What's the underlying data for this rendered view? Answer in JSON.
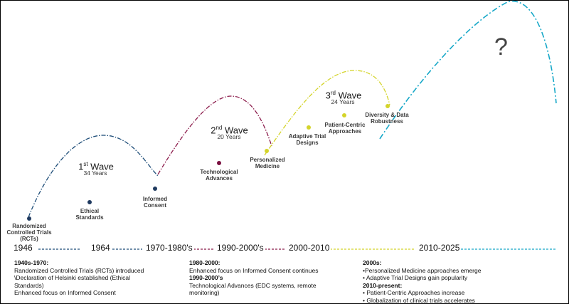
{
  "waves": [
    {
      "name_main": "1",
      "name_sup": "st",
      "name_rest": " Wave",
      "years": "34 Years",
      "color": "#1f4e79"
    },
    {
      "name_main": "2",
      "name_sup": "nd",
      "name_rest": " Wave",
      "years": "20 Years",
      "color": "#8b1a4a"
    },
    {
      "name_main": "3",
      "name_sup": "rd",
      "name_rest": " Wave",
      "years": "24 Years",
      "color": "#d4d42a"
    },
    {
      "question": "?",
      "color": "#17a8c8"
    }
  ],
  "milestones": [
    {
      "label": "Randomized Controlled Trials (RCTs)",
      "color": "#1f3a5f"
    },
    {
      "label": "Ethical Standards",
      "color": "#1f3a5f"
    },
    {
      "label": "Informed Consent",
      "color": "#1f3a5f"
    },
    {
      "label": "Technological Advances",
      "color": "#7a1040"
    },
    {
      "label": "Personalized Medicine",
      "color": "#d4d42a"
    },
    {
      "label": "Adaptive Trial Designs",
      "color": "#d4d42a"
    },
    {
      "label": "Patient-Centric Approaches",
      "color": "#d4d42a"
    },
    {
      "label": "Diversity & Data Robustness",
      "color": "#d4d42a"
    }
  ],
  "timeline": {
    "labels": [
      "1946",
      "1964",
      "1970-1980's",
      "1990-2000's",
      "2000-2010",
      "2010-2025"
    ]
  },
  "descriptions": [
    {
      "head1": "1940s-1970:",
      "line1": "Randomized Controlled Trials (RCTs) introduced",
      "line2": "\\Declaration of Helsinki established (Ethical",
      "line3": "Standards)",
      "line4": "Enhanced focus on Informed Consent"
    },
    {
      "head1": "1980-2000:",
      "line1": "Enhanced focus on Informed Consent continues",
      "head2": "1990-2000’s",
      "line2": "Technological Advances (EDC systems, remote",
      "line3": "monitoring)"
    },
    {
      "head1": "2000s:",
      "line1": "•Personalized Medicine approaches emerge",
      "line2": "• Adaptive Trial Designs gain popularity",
      "head2": "2010-present:",
      "line3": "• Patient-Centric Approaches increase",
      "line4": "• Globalization of clinical trials accelerates"
    }
  ]
}
